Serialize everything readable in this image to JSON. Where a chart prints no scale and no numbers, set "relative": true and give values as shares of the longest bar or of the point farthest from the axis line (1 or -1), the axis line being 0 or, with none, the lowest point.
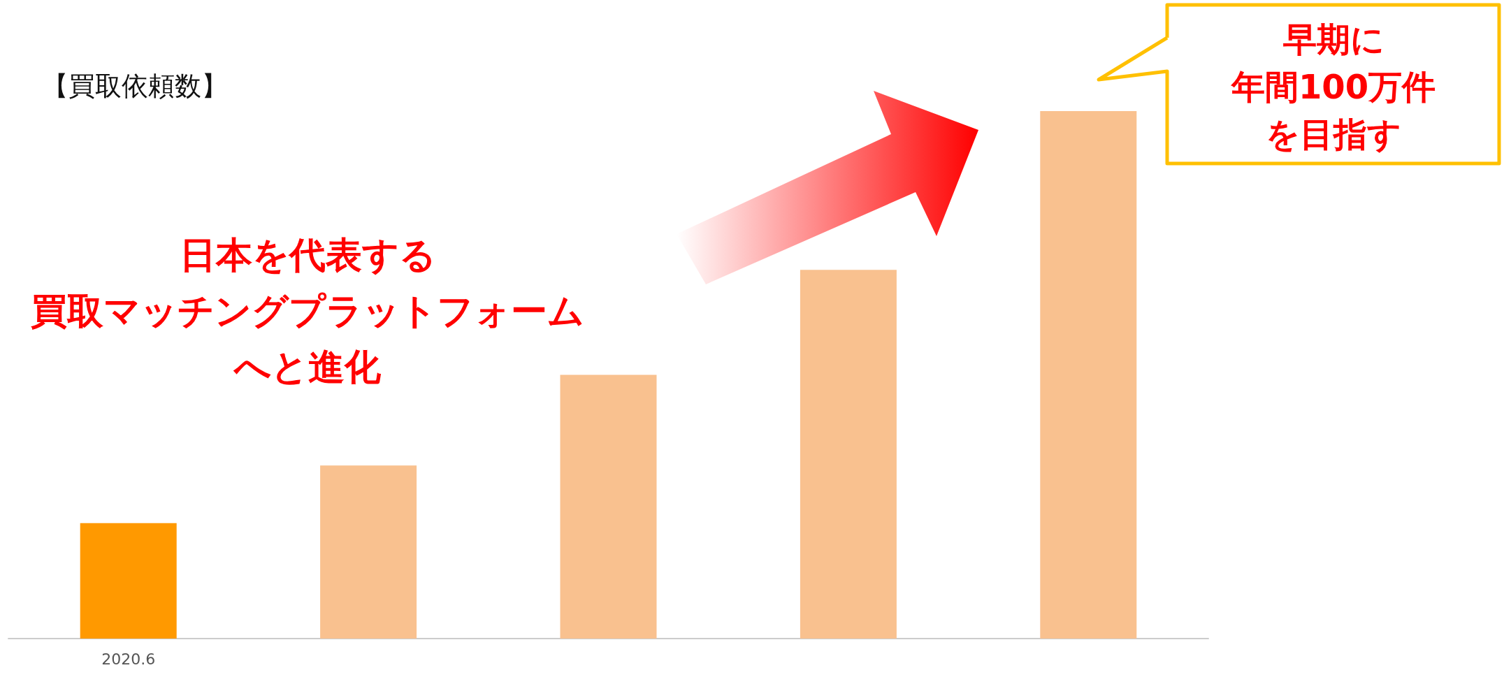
{
  "chart_data": {
    "type": "bar",
    "title": "【買取依頼数】",
    "categories": [
      "2020.6",
      null,
      null,
      null,
      null
    ],
    "values": [
      0.219,
      0.328,
      0.5,
      0.699,
      1
    ],
    "colors": [
      "#ff9900",
      "#f9c18f",
      "#f9c18f",
      "#f9c18f",
      "#f9c18f"
    ],
    "relative": true,
    "annotations": [
      "日本を代表する",
      "買取マッチングプラットフォーム",
      "へと進化",
      "早期に",
      "年間100万件",
      "を目指す"
    ]
  }
}
